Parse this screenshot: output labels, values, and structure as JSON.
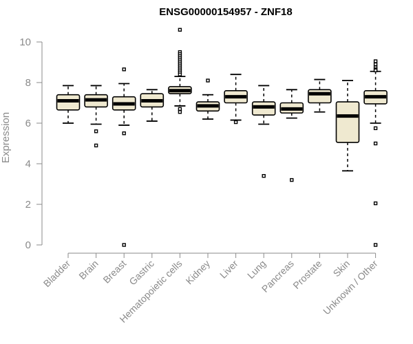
{
  "chart_data": {
    "type": "box",
    "title": "ENSG00000154957 - ZNF18",
    "xlabel": "",
    "ylabel": "Expression",
    "ylim": [
      0,
      10.5
    ],
    "yticks": [
      0,
      2,
      4,
      6,
      8,
      10
    ],
    "grid": false,
    "box_fill": "#efe9d0",
    "categories": [
      "Bladder",
      "Brain",
      "Breast",
      "Gastric",
      "Hematopoietic cells",
      "Kidney",
      "Liver",
      "Lung",
      "Pancreas",
      "Prostate",
      "Skin",
      "Unknown / Other"
    ],
    "boxes": [
      {
        "q1": 6.65,
        "median": 7.1,
        "q3": 7.4,
        "whisker_low": 6.0,
        "whisker_high": 7.85,
        "outliers": []
      },
      {
        "q1": 6.8,
        "median": 7.15,
        "q3": 7.4,
        "whisker_low": 5.95,
        "whisker_high": 7.85,
        "outliers": [
          5.6,
          4.9
        ]
      },
      {
        "q1": 6.65,
        "median": 6.95,
        "q3": 7.3,
        "whisker_low": 5.9,
        "whisker_high": 7.95,
        "outliers": [
          8.65,
          5.5,
          0.0
        ]
      },
      {
        "q1": 6.8,
        "median": 7.1,
        "q3": 7.45,
        "whisker_low": 6.1,
        "whisker_high": 7.65,
        "outliers": []
      },
      {
        "q1": 7.45,
        "median": 7.6,
        "q3": 7.8,
        "whisker_low": 6.85,
        "whisker_high": 8.3,
        "outliers": [
          10.6,
          9.5,
          9.4,
          9.3,
          9.2,
          9.1,
          9.0,
          8.9,
          8.8,
          8.7,
          8.6,
          8.5,
          8.4,
          6.7,
          6.55
        ]
      },
      {
        "q1": 6.6,
        "median": 6.85,
        "q3": 7.05,
        "whisker_low": 6.2,
        "whisker_high": 7.4,
        "outliers": [
          8.1
        ]
      },
      {
        "q1": 7.0,
        "median": 7.3,
        "q3": 7.6,
        "whisker_low": 6.15,
        "whisker_high": 8.4,
        "outliers": [
          6.05
        ]
      },
      {
        "q1": 6.4,
        "median": 6.8,
        "q3": 7.05,
        "whisker_low": 5.95,
        "whisker_high": 7.85,
        "outliers": [
          3.4
        ]
      },
      {
        "q1": 6.5,
        "median": 6.7,
        "q3": 7.0,
        "whisker_low": 6.25,
        "whisker_high": 7.65,
        "outliers": [
          3.2
        ]
      },
      {
        "q1": 7.0,
        "median": 7.45,
        "q3": 7.65,
        "whisker_low": 6.55,
        "whisker_high": 8.15,
        "outliers": []
      },
      {
        "q1": 5.05,
        "median": 6.35,
        "q3": 7.05,
        "whisker_low": 3.65,
        "whisker_high": 8.1,
        "outliers": []
      },
      {
        "q1": 6.95,
        "median": 7.3,
        "q3": 7.6,
        "whisker_low": 6.0,
        "whisker_high": 8.55,
        "outliers": [
          9.05,
          8.9,
          8.75,
          8.65,
          8.6,
          5.75,
          5.0,
          2.05,
          0.0
        ]
      }
    ]
  }
}
